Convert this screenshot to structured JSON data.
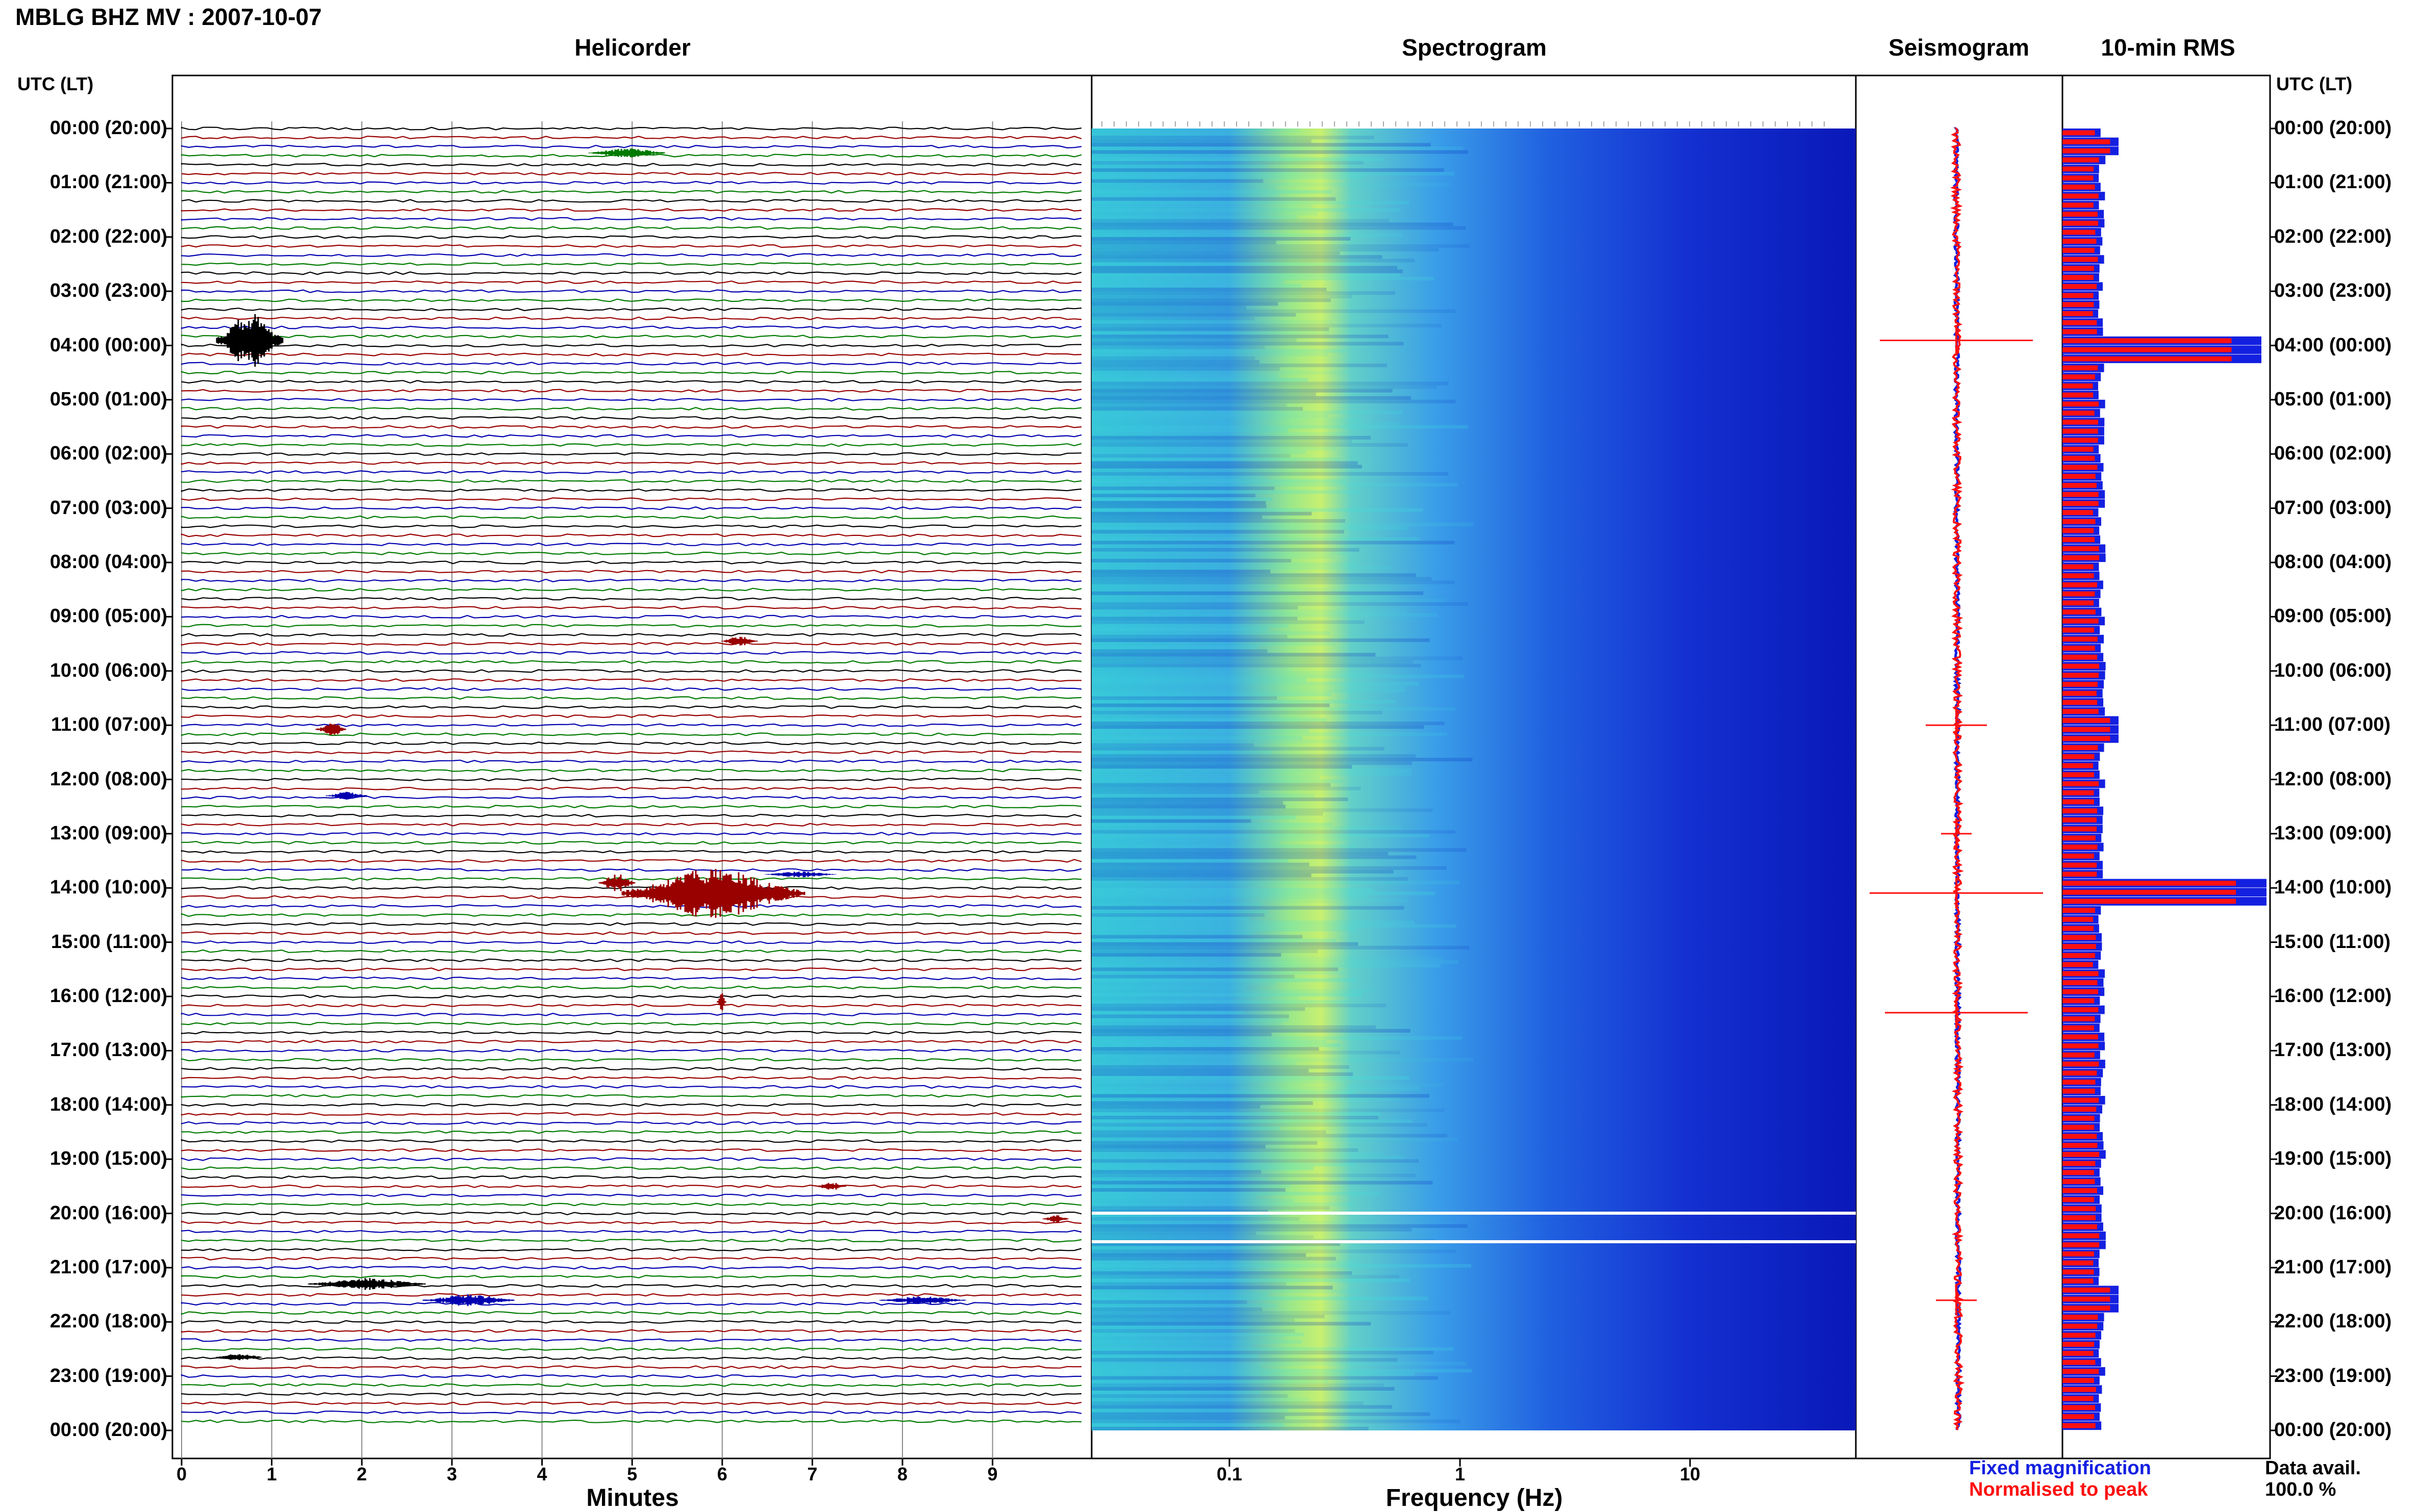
{
  "header": {
    "title": "MBLG BHZ MV : 2007-10-07"
  },
  "panels": {
    "helicorder": "Helicorder",
    "spectrogram": "Spectrogram",
    "seismogram": "Seismogram",
    "rms": "10-min RMS"
  },
  "axes": {
    "time_axis_label": "UTC (LT)",
    "helicorder_xlabel": "Minutes",
    "spectrogram_xlabel": "Frequency (Hz)",
    "minute_ticks": [
      "0",
      "1",
      "2",
      "3",
      "4",
      "5",
      "6",
      "7",
      "8",
      "9"
    ],
    "freq_ticks": [
      "0.1",
      "1",
      "10"
    ]
  },
  "time_labels": [
    "00:00 (20:00)",
    "01:00 (21:00)",
    "02:00 (22:00)",
    "03:00 (23:00)",
    "04:00 (00:00)",
    "05:00 (01:00)",
    "06:00 (02:00)",
    "07:00 (03:00)",
    "08:00 (04:00)",
    "09:00 (05:00)",
    "10:00 (06:00)",
    "11:00 (07:00)",
    "12:00 (08:00)",
    "13:00 (09:00)",
    "14:00 (10:00)",
    "15:00 (11:00)",
    "16:00 (12:00)",
    "17:00 (13:00)",
    "18:00 (14:00)",
    "19:00 (15:00)",
    "20:00 (16:00)",
    "21:00 (17:00)",
    "22:00 (18:00)",
    "23:00 (19:00)",
    "00:00 (20:00)"
  ],
  "legend": {
    "fixed": "Fixed magnification",
    "normalised": "Normalised to peak",
    "fixed_color": "#1420e0",
    "normalised_color": "#ff1010"
  },
  "availability": {
    "label": "Data avail.",
    "value": "100.0 %"
  },
  "colors": {
    "trace_cycle": [
      "#000000",
      "#990000",
      "#0000b0",
      "#007a00"
    ]
  }
}
